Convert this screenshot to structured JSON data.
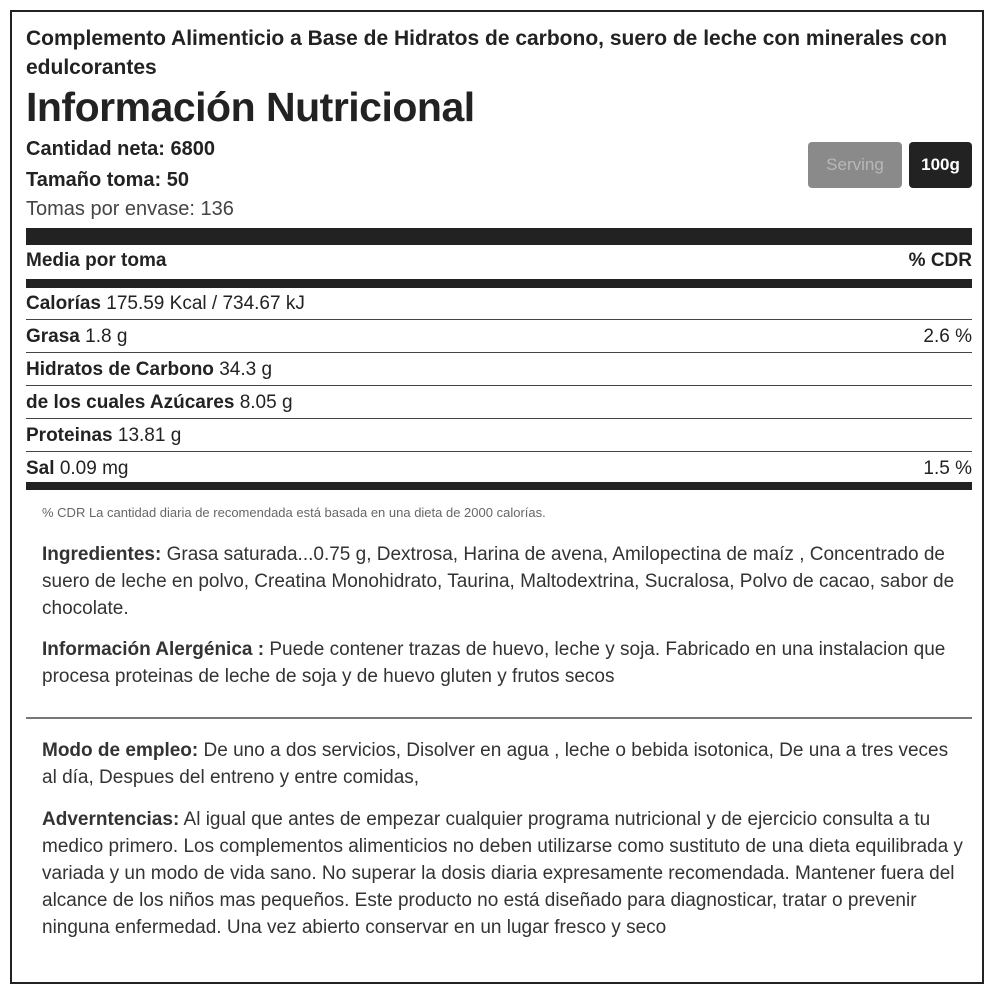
{
  "header": {
    "subtitle": "Complemento Alimenticio a Base de Hidratos de carbono, suero de leche con minerales con edulcorantes",
    "title": "Información Nutricional",
    "net_quantity": "Cantidad neta: 6800",
    "serving_size": "Tamaño toma: 50",
    "servings_per_container": "Tomas por envase: 136",
    "buttons": {
      "serving": "Serving",
      "per100g": "100g"
    }
  },
  "table": {
    "header_left": "Media por toma",
    "header_right": "% CDR",
    "rows": [
      {
        "label": "Calorías",
        "value": "175.59 Kcal / 734.67 kJ",
        "cdr": ""
      },
      {
        "label": "Grasa",
        "value": "1.8 g",
        "cdr": "2.6 %"
      },
      {
        "label": "Hidratos de Carbono",
        "value": "34.3 g",
        "cdr": ""
      },
      {
        "label": "de los cuales Azúcares",
        "value": "8.05 g",
        "cdr": ""
      },
      {
        "label": "Proteinas",
        "value": "13.81 g",
        "cdr": ""
      },
      {
        "label": "Sal",
        "value": "0.09 mg",
        "cdr": "1.5 %"
      }
    ]
  },
  "footnote": "% CDR La cantidad diaria de recomendada está basada en una dieta de 2000 calorías.",
  "ingredients": {
    "label": "Ingredientes:",
    "text": "Grasa saturada...0.75 g, Dextrosa, Harina de avena, Amilopectina de maíz , Concentrado de suero de leche en polvo, Creatina Monohidrato, Taurina, Maltodextrina, Sucralosa, Polvo de cacao, sabor de chocolate."
  },
  "allergens": {
    "label": "Información Alergénica :",
    "text": "Puede contener trazas de huevo, leche y soja. Fabricado en una instalacion que procesa proteinas de leche de soja y de huevo gluten y frutos secos"
  },
  "usage": {
    "label": "Modo de empleo:",
    "text": "De uno a dos servicios, Disolver en agua , leche o bebida isotonica, De una a tres veces al día, Despues del entreno y entre comidas,"
  },
  "warnings": {
    "label": "Adverntencias:",
    "text": "Al igual que antes de empezar cualquier programa nutricional y de ejercicio consulta a tu medico primero. Los complementos alimenticios no deben utilizarse como sustituto de una dieta equilibrada y variada y un modo de vida sano. No superar la dosis diaria expresamente recomendada. Mantener fuera del alcance de los niños mas pequeños. Este producto no está diseñado para diagnosticar, tratar o prevenir ninguna enfermedad. Una vez abierto conservar en un lugar fresco y seco"
  }
}
